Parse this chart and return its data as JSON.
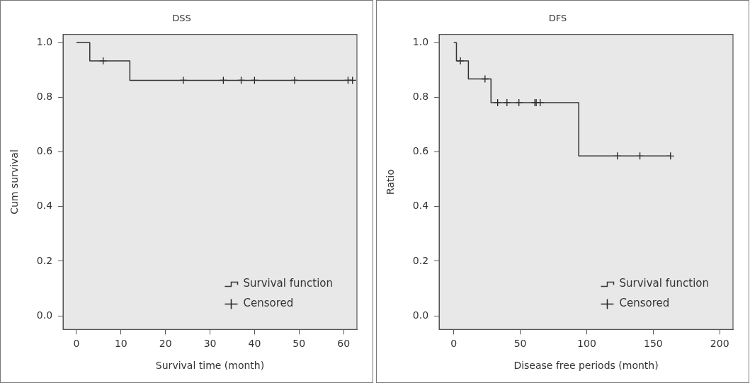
{
  "chart_data": [
    {
      "type": "step",
      "title": "DSS",
      "xlabel": "Survival time (month)",
      "ylabel": "Cum survival",
      "xlim": [
        -3,
        63
      ],
      "xticks": [
        0,
        10,
        20,
        30,
        40,
        50,
        60
      ],
      "ylim": [
        -0.05,
        1.03
      ],
      "yticks": [
        {
          "value": 0,
          "label": "0.0"
        },
        {
          "value": 0.2,
          "label": "0.2"
        },
        {
          "value": 0.4,
          "label": "0.4"
        },
        {
          "value": 0.6,
          "label": "0.6"
        },
        {
          "value": 0.8,
          "label": "0.8"
        },
        {
          "value": 1,
          "label": "1.0"
        }
      ],
      "grid": false,
      "legend": "bottom right",
      "series": [
        {
          "name": "Survival function",
          "type": "step",
          "color": "#333333",
          "marker": "none",
          "x": [
            0,
            3,
            12,
            62
          ],
          "values": [
            1,
            0.933,
            0.862,
            0.862
          ]
        },
        {
          "name": "Censored",
          "type": "scatter",
          "color": "#222222",
          "marker": "cross",
          "x": [
            6,
            24,
            33,
            37,
            40,
            49,
            61,
            62
          ],
          "values": [
            0.933,
            0.862,
            0.862,
            0.862,
            0.862,
            0.862,
            0.862,
            0.862
          ]
        }
      ]
    },
    {
      "type": "step",
      "title": "DFS",
      "xlabel": "Disease free periods (month)",
      "ylabel": "Ratio",
      "xlim": [
        -11,
        210
      ],
      "xticks": [
        0,
        50,
        100,
        150,
        200
      ],
      "ylim": [
        -0.05,
        1.03
      ],
      "yticks": [
        {
          "value": 0,
          "label": "0.0"
        },
        {
          "value": 0.2,
          "label": "0.2"
        },
        {
          "value": 0.4,
          "label": "0.4"
        },
        {
          "value": 0.6,
          "label": "0.6"
        },
        {
          "value": 0.8,
          "label": "0.8"
        },
        {
          "value": 1,
          "label": "1.0"
        }
      ],
      "grid": false,
      "legend": "bottom right",
      "series": [
        {
          "name": "Survival function",
          "type": "step",
          "color": "#333333",
          "marker": "none",
          "x": [
            0,
            2,
            11,
            28,
            94,
            163
          ],
          "values": [
            1,
            0.933,
            0.867,
            0.78,
            0.585,
            0.585
          ]
        },
        {
          "name": "Censored",
          "type": "scatter",
          "color": "#222222",
          "marker": "cross",
          "x": [
            5,
            23.5,
            33,
            40,
            49,
            61,
            62,
            65,
            123,
            140,
            163
          ],
          "values": [
            0.933,
            0.867,
            0.78,
            0.78,
            0.78,
            0.78,
            0.78,
            0.78,
            0.585,
            0.585,
            0.585
          ]
        }
      ]
    }
  ]
}
